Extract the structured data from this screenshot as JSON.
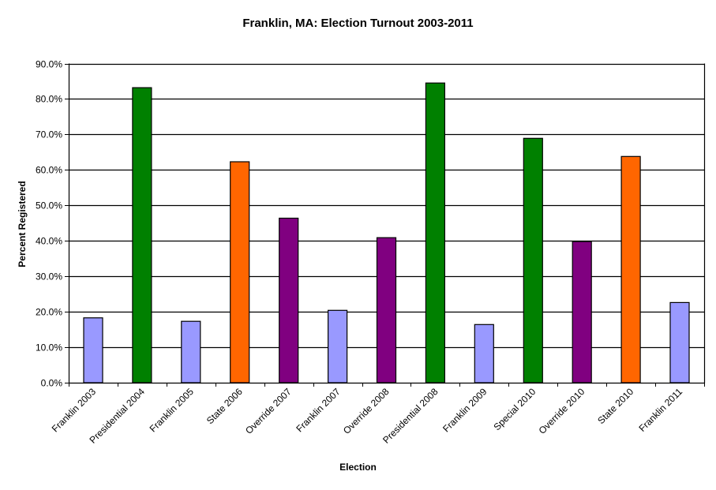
{
  "chart_data": {
    "type": "bar",
    "title": "Franklin, MA: Election Turnout 2003-2011",
    "xlabel": "Election",
    "ylabel": "Percent Registered",
    "ylim": [
      0,
      90
    ],
    "yticks": [
      "0.0%",
      "10.0%",
      "20.0%",
      "30.0%",
      "40.0%",
      "50.0%",
      "60.0%",
      "70.0%",
      "80.0%",
      "90.0%"
    ],
    "grid": true,
    "legend": null,
    "categories": [
      "Franklin 2003",
      "Presidential 2004",
      "Franklin 2005",
      "State 2006",
      "Override 2007",
      "Franklin 2007",
      "Override 2008",
      "Presidential 2008",
      "Franklin 2009",
      "Special 2010",
      "Override 2010",
      "State 2010",
      "Franklin 2011"
    ],
    "values": [
      18.3,
      83.2,
      17.3,
      62.3,
      46.4,
      20.4,
      40.9,
      84.5,
      16.4,
      68.9,
      39.8,
      63.8,
      22.6
    ],
    "bar_types": [
      "local",
      "presidential",
      "local",
      "state",
      "override",
      "local",
      "override",
      "presidential",
      "local",
      "special",
      "override",
      "state",
      "local"
    ],
    "colors": {
      "local": "#9999FF",
      "presidential": "#008000",
      "special": "#008000",
      "state": "#FF6600",
      "override": "#800080"
    }
  }
}
